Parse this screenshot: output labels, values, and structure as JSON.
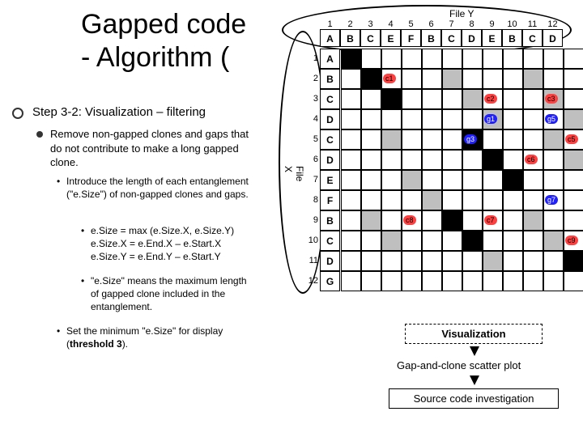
{
  "title_line1": "Gapped code",
  "title_line2": "- Algorithm (",
  "step": "Step 3-2: Visualization – filtering",
  "bullet1": "Remove non-gapped clones and gaps that do not contribute to make a long gapped clone.",
  "bullet1a": "Introduce the length of each entanglement (\"e.Size\") of non-gapped clones and gaps.",
  "bullet1b1": "e.Size = max (e.Size.X, e.Size.Y)",
  "bullet1b2": "e.Size.X = e.End.X – e.Start.X",
  "bullet1b3": "e.Size.Y = e.End.Y – e.Start.Y",
  "bullet1c": "\"e.Size\" means the maximum length of gapped clone included in the entanglement.",
  "bullet1d": "Set the minimum \"e.Size\" for display (threshold 3).",
  "matrix": {
    "file_y": "File Y",
    "file_x": "File X",
    "cols": [
      "1",
      "2",
      "3",
      "4",
      "5",
      "6",
      "7",
      "8",
      "9",
      "10",
      "11",
      "12"
    ],
    "col_headers": [
      "A",
      "B",
      "C",
      "E",
      "F",
      "B",
      "C",
      "D",
      "E",
      "B",
      "C",
      "D"
    ],
    "rows": [
      "1",
      "2",
      "3",
      "4",
      "5",
      "6",
      "7",
      "8",
      "9",
      "10",
      "11",
      "12"
    ],
    "row_headers": [
      "A",
      "B",
      "C",
      "D",
      "C",
      "D",
      "E",
      "F",
      "B",
      "C",
      "D",
      "G"
    ],
    "cells": [
      [
        "b",
        "",
        "",
        "",
        "",
        "",
        "",
        "",
        "",
        "",
        "",
        ""
      ],
      [
        "",
        "b",
        "",
        "",
        "",
        "k",
        "",
        "",
        "",
        "k",
        "",
        ""
      ],
      [
        "",
        "",
        "b",
        "",
        "",
        "",
        "k",
        "",
        "",
        "",
        "k",
        ""
      ],
      [
        "",
        "",
        "",
        "",
        "",
        "",
        "",
        "k",
        "",
        "",
        "",
        "k"
      ],
      [
        "",
        "",
        "k",
        "",
        "",
        "",
        "b",
        "",
        "",
        "",
        "k",
        ""
      ],
      [
        "",
        "",
        "",
        "",
        "",
        "",
        "",
        "b",
        "",
        "",
        "",
        "k"
      ],
      [
        "",
        "",
        "",
        "k",
        "",
        "",
        "",
        "",
        "b",
        "",
        "",
        ""
      ],
      [
        "",
        "",
        "",
        "",
        "k",
        "",
        "",
        "",
        "",
        "",
        "",
        ""
      ],
      [
        "",
        "k",
        "",
        "",
        "",
        "b",
        "",
        "",
        "",
        "k",
        "",
        ""
      ],
      [
        "",
        "",
        "k",
        "",
        "",
        "",
        "b",
        "",
        "",
        "",
        "k",
        ""
      ],
      [
        "",
        "",
        "",
        "",
        "",
        "",
        "",
        "k",
        "",
        "",
        "",
        "b"
      ],
      [
        "",
        "",
        "",
        "",
        "",
        "",
        "",
        "",
        "",
        "",
        "",
        ""
      ]
    ],
    "tags": [
      {
        "t": "c",
        "label": "c1",
        "r": 1,
        "c": 2
      },
      {
        "t": "c",
        "label": "c2",
        "r": 2,
        "c": 7
      },
      {
        "t": "c",
        "label": "c3",
        "r": 2,
        "c": 10
      },
      {
        "t": "g",
        "label": "g1",
        "r": 3,
        "c": 7
      },
      {
        "t": "g",
        "label": "g3",
        "r": 4,
        "c": 6
      },
      {
        "t": "g",
        "label": "g5",
        "r": 3,
        "c": 10
      },
      {
        "t": "c",
        "label": "c5",
        "r": 4,
        "c": 11
      },
      {
        "t": "c",
        "label": "c6",
        "r": 5,
        "c": 9
      },
      {
        "t": "g",
        "label": "g7",
        "r": 7,
        "c": 10
      },
      {
        "t": "c",
        "label": "c8",
        "r": 8,
        "c": 3
      },
      {
        "t": "c",
        "label": "c7",
        "r": 8,
        "c": 7
      },
      {
        "t": "c",
        "label": "c9",
        "r": 9,
        "c": 11
      }
    ]
  },
  "flow": {
    "viz": "Visualization",
    "scatter": "Gap-and-clone scatter plot",
    "src": "Source code investigation"
  }
}
